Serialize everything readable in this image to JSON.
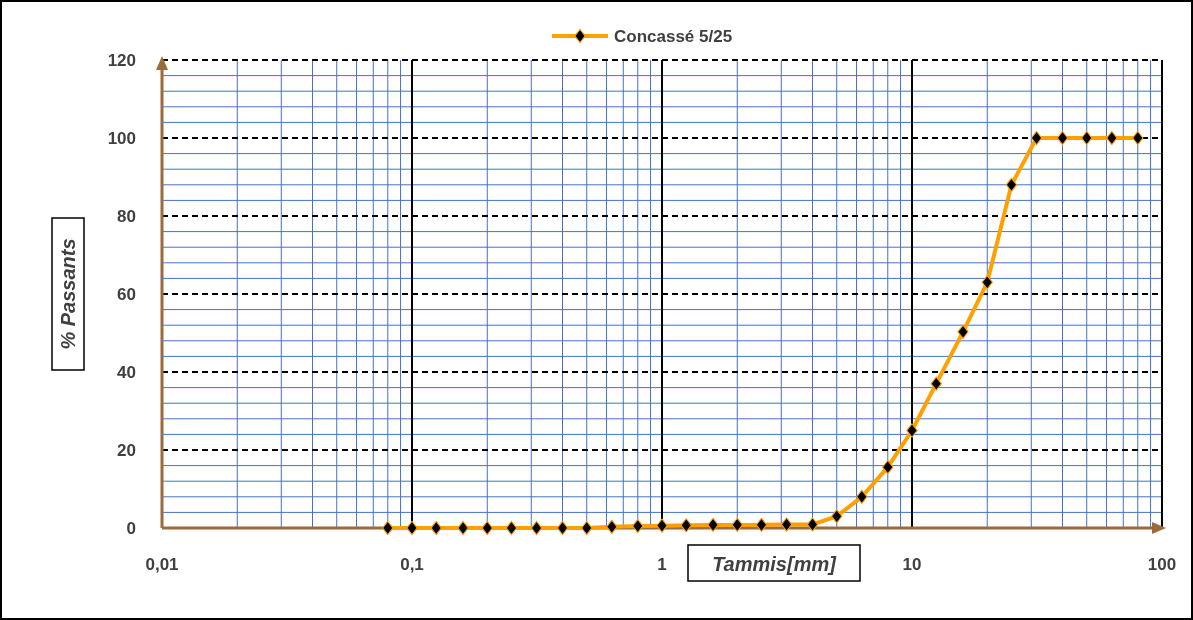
{
  "chart_data": {
    "type": "line",
    "xlabel": "Tammis[mm]",
    "ylabel": "% Passants",
    "log": "x",
    "grid": true,
    "legend": "top",
    "marker": "diamond",
    "line_style": "solid",
    "xlim": [
      0.01,
      100
    ],
    "xticks": [
      {
        "value": 0.01,
        "label": "0,01"
      },
      {
        "value": 0.02,
        "label": null
      },
      {
        "value": 0.03,
        "label": null
      },
      {
        "value": 0.04,
        "label": null
      },
      {
        "value": 0.05,
        "label": null
      },
      {
        "value": 0.06,
        "label": null
      },
      {
        "value": 0.07,
        "label": null
      },
      {
        "value": 0.08,
        "label": null
      },
      {
        "value": 0.09,
        "label": null
      },
      {
        "value": 0.1,
        "label": "0,1"
      },
      {
        "value": 0.2,
        "label": null
      },
      {
        "value": 0.3,
        "label": null
      },
      {
        "value": 0.4,
        "label": null
      },
      {
        "value": 0.5,
        "label": null
      },
      {
        "value": 0.6,
        "label": null
      },
      {
        "value": 0.7,
        "label": null
      },
      {
        "value": 0.8,
        "label": null
      },
      {
        "value": 0.9,
        "label": null
      },
      1,
      {
        "value": 2,
        "label": null
      },
      {
        "value": 3,
        "label": null
      },
      {
        "value": 4,
        "label": null
      },
      {
        "value": 5,
        "label": null
      },
      {
        "value": 6,
        "label": null
      },
      {
        "value": 7,
        "label": null
      },
      {
        "value": 8,
        "label": null
      },
      {
        "value": 9,
        "label": null
      },
      10,
      {
        "value": 20,
        "label": null
      },
      {
        "value": 30,
        "label": null
      },
      {
        "value": 40,
        "label": null
      },
      {
        "value": 50,
        "label": null
      },
      {
        "value": 60,
        "label": null
      },
      {
        "value": 70,
        "label": null
      },
      {
        "value": 80,
        "label": null
      },
      {
        "value": 90,
        "label": null
      },
      100
    ],
    "ylim": [
      0,
      120
    ],
    "yticks": [
      0,
      {
        "value": 4,
        "label": null
      },
      {
        "value": 8,
        "label": null
      },
      {
        "value": 12,
        "label": null
      },
      {
        "value": 16,
        "label": null
      },
      20,
      {
        "value": 24,
        "label": null
      },
      {
        "value": 28,
        "label": null
      },
      {
        "value": 32,
        "label": null
      },
      {
        "value": 36,
        "label": null
      },
      40,
      {
        "value": 44,
        "label": null
      },
      {
        "value": 48,
        "label": null
      },
      {
        "value": 52,
        "label": null
      },
      {
        "value": 56,
        "label": null
      },
      60,
      {
        "value": 64,
        "label": null
      },
      {
        "value": 68,
        "label": null
      },
      {
        "value": 72,
        "label": null
      },
      {
        "value": 76,
        "label": null
      },
      80,
      {
        "value": 84,
        "label": null
      },
      {
        "value": 88,
        "label": null
      },
      {
        "value": 92,
        "label": null
      },
      {
        "value": 96,
        "label": null
      },
      100,
      {
        "value": 104,
        "label": null
      },
      {
        "value": 108,
        "label": null
      },
      {
        "value": 112,
        "label": null
      },
      {
        "value": 116,
        "label": null
      },
      120
    ],
    "series": [
      {
        "name": "Concassé 5/25",
        "color": "#ffa000",
        "x": [
          0.08,
          0.1,
          0.125,
          0.16,
          0.2,
          0.25,
          0.315,
          0.4,
          0.5,
          0.63,
          0.8,
          1,
          1.25,
          1.6,
          2,
          2.5,
          3.15,
          4,
          5,
          6.3,
          8,
          10,
          12.5,
          16,
          20,
          25,
          31.5,
          40,
          50,
          63,
          80
        ],
        "values": [
          0,
          0,
          0,
          0,
          0,
          0,
          0,
          0,
          0,
          0.3,
          0.5,
          0.6,
          0.7,
          0.8,
          0.8,
          0.8,
          0.9,
          0.9,
          3,
          8,
          15.6,
          25,
          37,
          50.3,
          63,
          88,
          100,
          100,
          100,
          100,
          100
        ]
      }
    ]
  }
}
